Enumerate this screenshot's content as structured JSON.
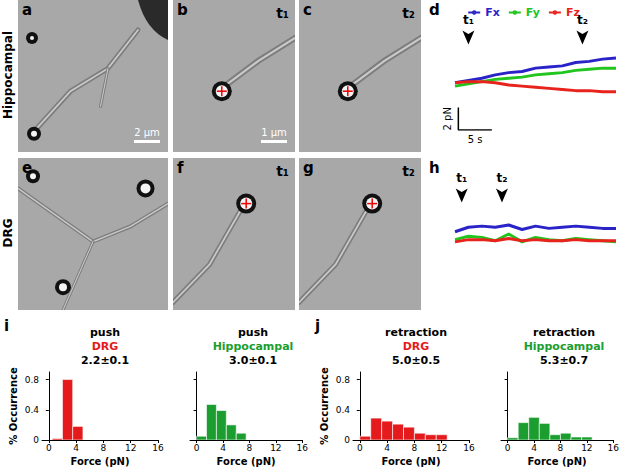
{
  "row_labels": [
    "Hippocampal",
    "DRG"
  ],
  "images": [
    {
      "panel": "a",
      "scale_bar": "2 μm"
    },
    {
      "panel": "b",
      "label": "t₁",
      "scale_bar": "1 μm"
    },
    {
      "panel": "c",
      "label": "t₂"
    },
    {
      "panel": "e"
    },
    {
      "panel": "f",
      "label": "t₁"
    },
    {
      "panel": "g",
      "label": "t₂"
    }
  ],
  "chart_data": [
    {
      "panel": "d",
      "type": "line",
      "x": [
        0,
        2,
        4,
        6,
        8,
        10,
        12,
        14,
        16,
        18,
        20,
        22,
        24
      ],
      "series": [
        {
          "name": "Fx",
          "color": "#2a24c8",
          "values": [
            2.2,
            2.4,
            2.6,
            2.9,
            3.1,
            3.2,
            3.5,
            3.6,
            3.7,
            4.0,
            4.1,
            4.3,
            4.4
          ]
        },
        {
          "name": "Fy",
          "color": "#22c41e",
          "values": [
            1.9,
            2.1,
            2.3,
            2.5,
            2.6,
            2.7,
            2.9,
            3.0,
            3.1,
            3.3,
            3.4,
            3.5,
            3.5
          ]
        },
        {
          "name": "Fz",
          "color": "#e8231c",
          "values": [
            2.2,
            2.3,
            2.3,
            2.2,
            2.0,
            1.9,
            1.8,
            1.7,
            1.6,
            1.5,
            1.5,
            1.4,
            1.4
          ]
        }
      ],
      "xlim": [
        0,
        24
      ],
      "ylim": [
        -2,
        6
      ],
      "tick_labels": false,
      "legend": "top",
      "annotations": [
        {
          "label": "t₁",
          "x": 2
        },
        {
          "label": "t₂",
          "x": 19
        }
      ],
      "scale_bar": {
        "x": 5,
        "y": 2,
        "x_label": "5 s",
        "y_label": "2 pN"
      }
    },
    {
      "panel": "h",
      "type": "line",
      "x": [
        0,
        2,
        4,
        6,
        8,
        10,
        12,
        14,
        16,
        18,
        20,
        22,
        24
      ],
      "series": [
        {
          "name": "Fx",
          "color": "#2a24c8",
          "values": [
            3.0,
            3.4,
            3.5,
            3.4,
            3.6,
            3.2,
            3.5,
            3.3,
            3.4,
            3.5,
            3.4,
            3.3,
            3.3
          ]
        },
        {
          "name": "Fy",
          "color": "#22c41e",
          "values": [
            2.3,
            2.6,
            2.5,
            2.2,
            2.8,
            2.1,
            2.5,
            2.3,
            2.2,
            2.4,
            2.3,
            2.2,
            2.1
          ]
        },
        {
          "name": "Fz",
          "color": "#e8231c",
          "values": [
            2.1,
            2.3,
            2.3,
            2.2,
            2.4,
            2.2,
            2.3,
            2.2,
            2.2,
            2.3,
            2.2,
            2.2,
            2.2
          ]
        }
      ],
      "xlim": [
        0,
        24
      ],
      "ylim": [
        -2,
        6
      ],
      "tick_labels": false,
      "annotations": [
        {
          "label": "t₁",
          "x": 1
        },
        {
          "label": "t₂",
          "x": 7
        }
      ]
    },
    {
      "panel": "i",
      "type": "histogram",
      "title": "push",
      "subtitle": "DRG",
      "annotation": "2.2±0.1",
      "x_label": "Force (pN)",
      "y_label": "% Occurrence",
      "color": "#e41a1c",
      "bins": [
        0.5,
        2,
        3.5,
        5
      ],
      "counts": [
        0.02,
        0.8,
        0.18
      ],
      "xlim": [
        -1,
        16
      ],
      "xticks": [
        0,
        4,
        8,
        12,
        16
      ],
      "ylim": [
        0,
        0.9
      ],
      "yticks": [
        0,
        0.4,
        0.8
      ]
    },
    {
      "panel": "i",
      "type": "histogram",
      "title": "push",
      "subtitle": "Hippocampal",
      "annotation": "3.0±0.1",
      "x_label": "Force (pN)",
      "color": "#1b9e2f",
      "tick_labels": "x",
      "bins": [
        0,
        1.5,
        3,
        4.5,
        6,
        7.5
      ],
      "counts": [
        0.05,
        0.47,
        0.39,
        0.2,
        0.09
      ],
      "xlim": [
        -1,
        16
      ],
      "xticks": [
        0,
        4,
        8,
        12,
        16
      ],
      "ylim": [
        0,
        0.9
      ],
      "yticks": [
        0,
        0.4,
        0.8
      ]
    },
    {
      "panel": "j",
      "type": "histogram",
      "title": "retraction",
      "subtitle": "DRG",
      "annotation": "5.0±0.5",
      "x_label": "Force (pN)",
      "y_label": "% Occurrence",
      "color": "#e41a1c",
      "bins": [
        0,
        1.6,
        3.2,
        4.8,
        6.4,
        8,
        9.6,
        11.2,
        12.8
      ],
      "counts": [
        0.05,
        0.29,
        0.25,
        0.21,
        0.17,
        0.09,
        0.07,
        0.07
      ],
      "xlim": [
        -1,
        16
      ],
      "xticks": [
        0,
        4,
        8,
        12,
        16
      ],
      "ylim": [
        0,
        0.9
      ],
      "yticks": [
        0,
        0.4,
        0.8
      ]
    },
    {
      "panel": "j",
      "type": "histogram",
      "title": "retraction",
      "subtitle": "Hippocampal",
      "annotation": "5.3±0.7",
      "x_label": "Force (pN)",
      "color": "#1b9e2f",
      "tick_labels": "x",
      "bins": [
        0,
        1.6,
        3.2,
        4.8,
        6.4,
        8,
        9.6,
        11.2,
        12.8
      ],
      "counts": [
        0.03,
        0.23,
        0.3,
        0.22,
        0.07,
        0.09,
        0.04,
        0.04
      ],
      "xlim": [
        -1,
        16
      ],
      "xticks": [
        0,
        4,
        8,
        12,
        16
      ],
      "ylim": [
        0,
        0.9
      ],
      "yticks": [
        0,
        0.4,
        0.8
      ]
    }
  ]
}
